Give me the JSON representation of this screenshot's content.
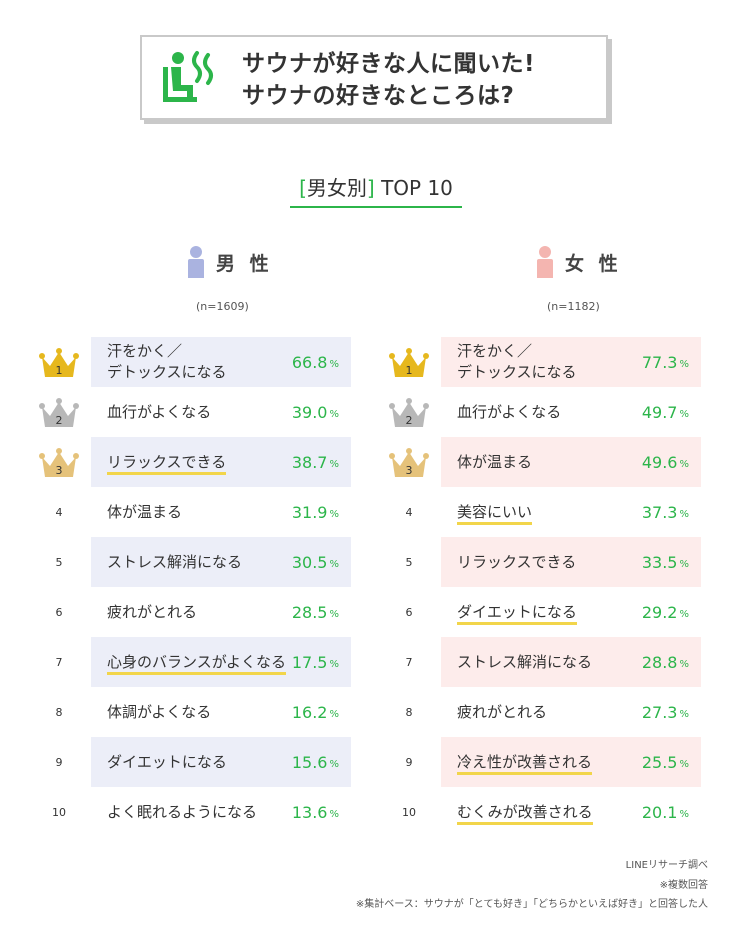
{
  "header": {
    "title_line1": "サウナが好きな人に聞いた!",
    "title_line2": "サウナの好きなところは?"
  },
  "subtitle": {
    "bracket_open": "[",
    "label": "男女別",
    "bracket_close": "]",
    "rest": " TOP 10"
  },
  "colors": {
    "accent": "#2cb54a",
    "male": "#aab3e0",
    "female": "#f4b5b0",
    "gold": "#e6b81e",
    "silver": "#b8b8b8",
    "bronze": "#e5c27a"
  },
  "male": {
    "label": "男 性",
    "n": "(n=1609)"
  },
  "female": {
    "label": "女 性",
    "n": "(n=1182)"
  },
  "chart_data": [
    {
      "type": "table",
      "name": "男性",
      "n": "(n=1609)",
      "unit": "%",
      "rows": [
        {
          "rank": "1",
          "label": "汗をかく／\nデトックスになる",
          "value": "66.8",
          "underline": false
        },
        {
          "rank": "2",
          "label": "血行がよくなる",
          "value": "39.0",
          "underline": false
        },
        {
          "rank": "3",
          "label": "リラックスできる",
          "value": "38.7",
          "underline": true
        },
        {
          "rank": "4",
          "label": "体が温まる",
          "value": "31.9",
          "underline": false
        },
        {
          "rank": "5",
          "label": "ストレス解消になる",
          "value": "30.5",
          "underline": false
        },
        {
          "rank": "6",
          "label": "疲れがとれる",
          "value": "28.5",
          "underline": false
        },
        {
          "rank": "7",
          "label": "心身のバランスがよくなる",
          "value": "17.5",
          "underline": true
        },
        {
          "rank": "8",
          "label": "体調がよくなる",
          "value": "16.2",
          "underline": false
        },
        {
          "rank": "9",
          "label": "ダイエットになる",
          "value": "15.6",
          "underline": false
        },
        {
          "rank": "10",
          "label": "よく眠れるようになる",
          "value": "13.6",
          "underline": false
        }
      ]
    },
    {
      "type": "table",
      "name": "女性",
      "n": "(n=1182)",
      "unit": "%",
      "rows": [
        {
          "rank": "1",
          "label": "汗をかく／\nデトックスになる",
          "value": "77.3",
          "underline": false
        },
        {
          "rank": "2",
          "label": "血行がよくなる",
          "value": "49.7",
          "underline": false
        },
        {
          "rank": "3",
          "label": "体が温まる",
          "value": "49.6",
          "underline": false
        },
        {
          "rank": "4",
          "label": "美容にいい",
          "value": "37.3",
          "underline": true
        },
        {
          "rank": "5",
          "label": "リラックスできる",
          "value": "33.5",
          "underline": false
        },
        {
          "rank": "6",
          "label": "ダイエットになる",
          "value": "29.2",
          "underline": true
        },
        {
          "rank": "7",
          "label": "ストレス解消になる",
          "value": "28.8",
          "underline": false
        },
        {
          "rank": "8",
          "label": "疲れがとれる",
          "value": "27.3",
          "underline": false
        },
        {
          "rank": "9",
          "label": "冷え性が改善される",
          "value": "25.5",
          "underline": true
        },
        {
          "rank": "10",
          "label": "むくみが改善される",
          "value": "20.1",
          "underline": true
        }
      ]
    }
  ],
  "footer": {
    "source": "LINEリサーチ調べ",
    "note1": "※複数回答",
    "note2": "※集計ベース：サウナが「とても好き」「どちらかといえば好き」と回答した人"
  }
}
